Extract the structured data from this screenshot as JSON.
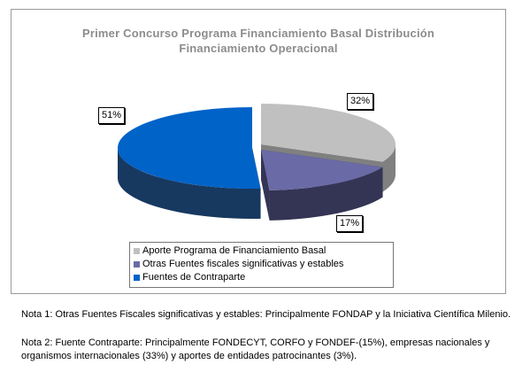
{
  "chart_data": {
    "type": "pie",
    "style": "3d-exploded",
    "title_lines": [
      "Primer Concurso Programa Financiamiento Basal Distribución",
      "Financiamiento Operacional"
    ],
    "slices": [
      {
        "name": "Aporte Programa de Financiamiento Basal",
        "value": 32,
        "label": "32%",
        "color": "#c0c0c0",
        "side_color": "#808080"
      },
      {
        "name": "Otras Fuentes fiscales significativas y estables",
        "value": 17,
        "label": "17%",
        "color": "#6a6aa6",
        "side_color": "#343454"
      },
      {
        "name": "Fuentes de Contraparte",
        "value": 51,
        "label": "51%",
        "color": "#0063c8",
        "side_color": "#173960"
      }
    ]
  },
  "notes": [
    "Nota 1: Otras Fuentes Fiscales significativas y estables: Principalmente FONDAP y la Iniciativa Científica Milenio.",
    "Nota 2: Fuente Contraparte: Principalmente FONDECYT, CORFO y FONDEF-(15%), empresas nacionales y",
    "organismos internacionales (33%)  y aportes de entidades patrocinantes (3%)."
  ]
}
